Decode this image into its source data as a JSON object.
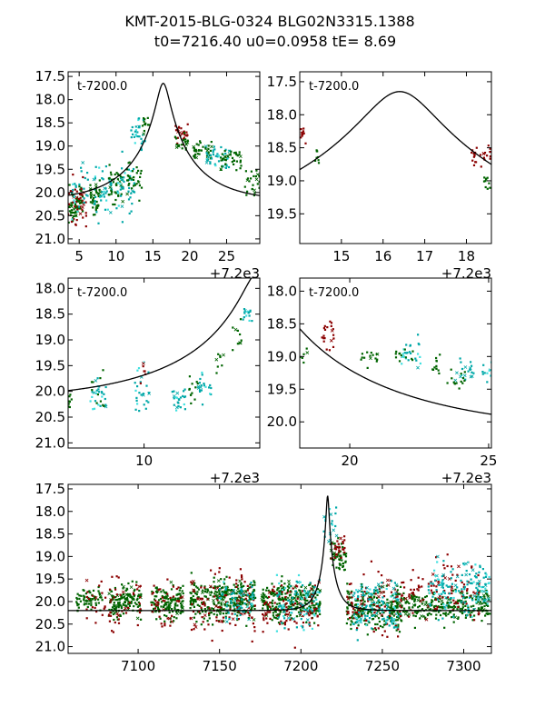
{
  "figure": {
    "title_line1": "KMT-2015-BLG-0324 BLG02N3315.1388",
    "title_line2": "t0=7216.40 u0=0.0958 tE=   8.69"
  },
  "colors": {
    "model": "#000000",
    "ctio": "#8b0000",
    "saao": "#006400",
    "sso": "#00a8a8",
    "sso_light": "#40e0e0"
  },
  "model": {
    "t0": 7216.4,
    "u0": 0.0958,
    "tE": 8.69,
    "mag_baseline": 20.2
  },
  "chart_data": [
    {
      "type": "scatter",
      "panel": "top-left",
      "annotation": "t-7200.0",
      "offset_label": "+7.2e3",
      "xlim": [
        3.5,
        29.5
      ],
      "ylim": [
        21.1,
        17.4
      ],
      "xticks": [
        5,
        10,
        15,
        20,
        25
      ],
      "yticks": [
        17.5,
        18.0,
        18.5,
        19.0,
        19.5,
        20.0,
        20.5,
        21.0
      ],
      "clusters": [
        {
          "set": "saao",
          "x": [
            3.5,
            5.5
          ],
          "y": [
            19.7,
            20.8
          ],
          "n": 60
        },
        {
          "set": "ctio",
          "x": [
            3.5,
            6.0
          ],
          "y": [
            19.4,
            21.1
          ],
          "n": 40
        },
        {
          "set": "sso",
          "x": [
            4.0,
            6.5
          ],
          "y": [
            18.9,
            20.8
          ],
          "n": 25
        },
        {
          "set": "saao",
          "x": [
            6.5,
            8.0
          ],
          "y": [
            19.6,
            20.6
          ],
          "n": 40
        },
        {
          "set": "sso",
          "x": [
            7.0,
            9.5
          ],
          "y": [
            19.2,
            20.8
          ],
          "n": 40
        },
        {
          "set": "saao",
          "x": [
            9.0,
            11.0
          ],
          "y": [
            19.3,
            20.5
          ],
          "n": 40
        },
        {
          "set": "sso",
          "x": [
            10.0,
            12.5
          ],
          "y": [
            19.0,
            20.8
          ],
          "n": 40
        },
        {
          "set": "saao",
          "x": [
            11.5,
            13.5
          ],
          "y": [
            19.2,
            20.3
          ],
          "n": 30
        },
        {
          "set": "sso",
          "x": [
            12.0,
            14.0
          ],
          "y": [
            18.2,
            19.3
          ],
          "n": 30
        },
        {
          "set": "saao",
          "x": [
            13.5,
            14.5
          ],
          "y": [
            18.3,
            18.8
          ],
          "n": 12
        },
        {
          "set": "ctio",
          "x": [
            18.0,
            19.8
          ],
          "y": [
            18.4,
            19.1
          ],
          "n": 25
        },
        {
          "set": "saao",
          "x": [
            18.0,
            20.0
          ],
          "y": [
            18.6,
            19.2
          ],
          "n": 20
        },
        {
          "set": "saao",
          "x": [
            20.5,
            23.0
          ],
          "y": [
            18.8,
            19.4
          ],
          "n": 40
        },
        {
          "set": "sso",
          "x": [
            22.0,
            25.5
          ],
          "y": [
            18.8,
            19.6
          ],
          "n": 40
        },
        {
          "set": "saao",
          "x": [
            24.0,
            27.0
          ],
          "y": [
            18.9,
            19.6
          ],
          "n": 40
        },
        {
          "set": "saao",
          "x": [
            27.5,
            29.5
          ],
          "y": [
            19.3,
            20.3
          ],
          "n": 25
        }
      ]
    },
    {
      "type": "scatter",
      "panel": "top-right",
      "annotation": "t-7200.0",
      "offset_label": "+7.2e3",
      "xlim": [
        14.0,
        18.6
      ],
      "ylim": [
        19.95,
        17.35
      ],
      "xticks": [
        15,
        16,
        17,
        18
      ],
      "yticks": [
        17.5,
        18.0,
        18.5,
        19.0,
        19.5
      ],
      "clusters": [
        {
          "set": "ctio",
          "x": [
            14.0,
            14.15
          ],
          "y": [
            18.1,
            18.5
          ],
          "n": 10
        },
        {
          "set": "saao",
          "x": [
            14.3,
            14.5
          ],
          "y": [
            18.4,
            18.9
          ],
          "n": 8
        },
        {
          "set": "ctio",
          "x": [
            18.1,
            18.6
          ],
          "y": [
            18.4,
            18.9
          ],
          "n": 25
        },
        {
          "set": "saao",
          "x": [
            18.4,
            18.6
          ],
          "y": [
            18.8,
            19.2
          ],
          "n": 10
        }
      ]
    },
    {
      "type": "scatter",
      "panel": "middle-left",
      "annotation": "t-7200.0",
      "offset_label": "+7.2e3",
      "xlim": [
        5.8,
        16.4
      ],
      "ylim": [
        21.1,
        17.8
      ],
      "xticks": [
        10
      ],
      "yticks": [
        18.0,
        18.5,
        19.0,
        19.5,
        20.0,
        20.5,
        21.0
      ],
      "clusters": [
        {
          "set": "saao",
          "x": [
            5.8,
            6.0
          ],
          "y": [
            20.0,
            20.5
          ],
          "n": 8
        },
        {
          "set": "sso",
          "x": [
            7.0,
            8.0
          ],
          "y": [
            19.5,
            20.5
          ],
          "n": 25
        },
        {
          "set": "saao",
          "x": [
            7.0,
            7.8
          ],
          "y": [
            19.5,
            20.6
          ],
          "n": 10
        },
        {
          "set": "sso",
          "x": [
            9.5,
            10.3
          ],
          "y": [
            19.3,
            20.6
          ],
          "n": 25
        },
        {
          "set": "ctio",
          "x": [
            9.8,
            10.3
          ],
          "y": [
            19.3,
            19.9
          ],
          "n": 6
        },
        {
          "set": "sso",
          "x": [
            11.5,
            12.3
          ],
          "y": [
            19.7,
            20.6
          ],
          "n": 25
        },
        {
          "set": "saao",
          "x": [
            12.5,
            13.0
          ],
          "y": [
            19.5,
            20.5
          ],
          "n": 12
        },
        {
          "set": "sso",
          "x": [
            13.0,
            13.8
          ],
          "y": [
            19.5,
            20.4
          ],
          "n": 20
        },
        {
          "set": "saao",
          "x": [
            14.0,
            14.5
          ],
          "y": [
            19.0,
            19.8
          ],
          "n": 8
        },
        {
          "set": "sso",
          "x": [
            15.4,
            16.0
          ],
          "y": [
            18.3,
            18.7
          ],
          "n": 15
        },
        {
          "set": "saao",
          "x": [
            14.8,
            15.4
          ],
          "y": [
            18.4,
            19.4
          ],
          "n": 10
        }
      ]
    },
    {
      "type": "scatter",
      "panel": "middle-right",
      "annotation": "t-7200.0",
      "offset_label": "+7.2e3",
      "xlim": [
        18.2,
        25.1
      ],
      "ylim": [
        20.4,
        17.8
      ],
      "xticks": [
        20,
        25
      ],
      "yticks": [
        18.0,
        18.5,
        19.0,
        19.5,
        20.0
      ],
      "clusters": [
        {
          "set": "saao",
          "x": [
            18.2,
            18.5
          ],
          "y": [
            18.8,
            19.2
          ],
          "n": 6
        },
        {
          "set": "ctio",
          "x": [
            19.0,
            19.5
          ],
          "y": [
            18.3,
            19.0
          ],
          "n": 20
        },
        {
          "set": "saao",
          "x": [
            20.4,
            21.0
          ],
          "y": [
            18.8,
            19.3
          ],
          "n": 15
        },
        {
          "set": "sso",
          "x": [
            21.8,
            22.6
          ],
          "y": [
            18.6,
            19.4
          ],
          "n": 25
        },
        {
          "set": "saao",
          "x": [
            21.6,
            22.3
          ],
          "y": [
            18.8,
            19.2
          ],
          "n": 12
        },
        {
          "set": "saao",
          "x": [
            22.8,
            23.3
          ],
          "y": [
            18.9,
            19.4
          ],
          "n": 12
        },
        {
          "set": "sso",
          "x": [
            23.8,
            24.5
          ],
          "y": [
            18.9,
            19.5
          ],
          "n": 20
        },
        {
          "set": "saao",
          "x": [
            23.5,
            24.2
          ],
          "y": [
            19.1,
            19.6
          ],
          "n": 14
        },
        {
          "set": "sso",
          "x": [
            24.7,
            25.1
          ],
          "y": [
            19.0,
            19.5
          ],
          "n": 10
        }
      ]
    },
    {
      "type": "scatter",
      "panel": "bottom",
      "offset_label": "",
      "xlim": [
        7057,
        7317
      ],
      "ylim": [
        21.15,
        17.4
      ],
      "xticks": [
        7100,
        7150,
        7200,
        7250,
        7300
      ],
      "yticks": [
        17.5,
        18.0,
        18.5,
        19.0,
        19.5,
        20.0,
        20.5,
        21.0
      ],
      "clusters": [
        {
          "set": "saao",
          "x": [
            7062,
            7078
          ],
          "y": [
            19.6,
            20.3
          ],
          "n": 60
        },
        {
          "set": "ctio",
          "x": [
            7068,
            7080
          ],
          "y": [
            19.3,
            20.8
          ],
          "n": 20
        },
        {
          "set": "saao",
          "x": [
            7082,
            7102
          ],
          "y": [
            19.5,
            20.5
          ],
          "n": 140
        },
        {
          "set": "ctio",
          "x": [
            7082,
            7102
          ],
          "y": [
            19.2,
            21.0
          ],
          "n": 40
        },
        {
          "set": "saao",
          "x": [
            7108,
            7128
          ],
          "y": [
            19.5,
            20.6
          ],
          "n": 130
        },
        {
          "set": "ctio",
          "x": [
            7108,
            7128
          ],
          "y": [
            19.2,
            21.0
          ],
          "n": 40
        },
        {
          "set": "saao",
          "x": [
            7132,
            7172
          ],
          "y": [
            19.3,
            20.6
          ],
          "n": 300
        },
        {
          "set": "ctio",
          "x": [
            7132,
            7172
          ],
          "y": [
            19.0,
            21.1
          ],
          "n": 110
        },
        {
          "set": "sso",
          "x": [
            7150,
            7172
          ],
          "y": [
            19.4,
            20.6
          ],
          "n": 60
        },
        {
          "set": "saao",
          "x": [
            7176,
            7212
          ],
          "y": [
            19.4,
            20.6
          ],
          "n": 260
        },
        {
          "set": "ctio",
          "x": [
            7176,
            7212
          ],
          "y": [
            19.2,
            21.1
          ],
          "n": 100
        },
        {
          "set": "sso",
          "x": [
            7185,
            7212
          ],
          "y": [
            19.2,
            20.9
          ],
          "n": 90
        },
        {
          "set": "saao",
          "x": [
            7218,
            7228
          ],
          "y": [
            18.5,
            19.5
          ],
          "n": 50
        },
        {
          "set": "ctio",
          "x": [
            7218,
            7228
          ],
          "y": [
            18.3,
            19.3
          ],
          "n": 25
        },
        {
          "set": "sso",
          "x": [
            7214,
            7222
          ],
          "y": [
            17.6,
            19.0
          ],
          "n": 20
        },
        {
          "set": "saao",
          "x": [
            7228,
            7262
          ],
          "y": [
            19.5,
            20.8
          ],
          "n": 220
        },
        {
          "set": "ctio",
          "x": [
            7228,
            7262
          ],
          "y": [
            19.0,
            21.1
          ],
          "n": 90
        },
        {
          "set": "sso",
          "x": [
            7232,
            7262
          ],
          "y": [
            19.3,
            21.0
          ],
          "n": 120
        },
        {
          "set": "saao",
          "x": [
            7262,
            7316
          ],
          "y": [
            19.6,
            20.6
          ],
          "n": 240
        },
        {
          "set": "ctio",
          "x": [
            7262,
            7310
          ],
          "y": [
            18.8,
            20.8
          ],
          "n": 100
        },
        {
          "set": "sso",
          "x": [
            7278,
            7316
          ],
          "y": [
            18.8,
            20.6
          ],
          "n": 140
        }
      ]
    }
  ]
}
